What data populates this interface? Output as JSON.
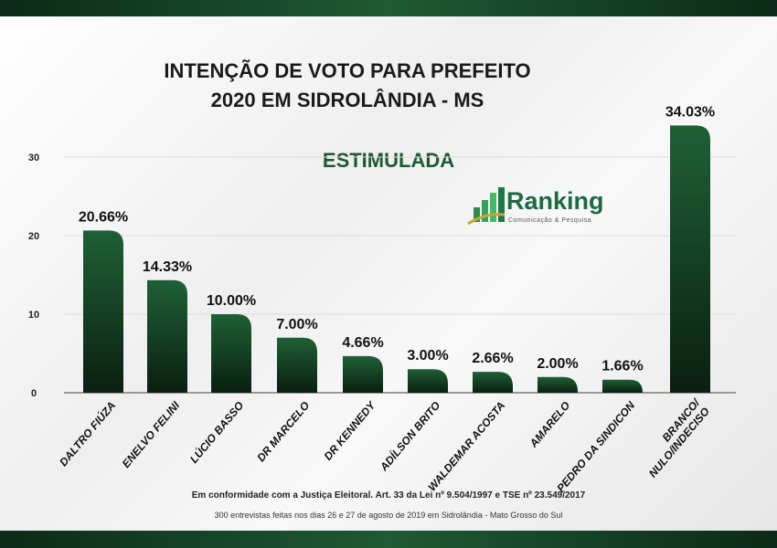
{
  "chart_data": {
    "type": "bar",
    "title": "INTENÇÃO DE VOTO PARA PREFEITO 2020 EM SIDROLÂNDIA - MS",
    "title_lines": [
      "INTENÇÃO DE VOTO PARA PREFEITO",
      "2020 EM SIDROLÂNDIA - MS"
    ],
    "subtitle": "ESTIMULADA",
    "categories": [
      "DALTRO FIÚZA",
      "ENELVO FELINI",
      "LÚCIO BASSO",
      "DR MARCELO",
      "DR KENNEDY",
      "ADÍLSON BRITO",
      "WALDEMAR ACOSTA",
      "AMARELO",
      "PEDRO DA SINDICON",
      "BRANCO/ NULO/INDECISO"
    ],
    "values": [
      20.66,
      14.33,
      10.0,
      7.0,
      4.66,
      3.0,
      2.66,
      2.0,
      1.66,
      34.03
    ],
    "data_labels": [
      "20.66%",
      "14.33%",
      "10.00%",
      "7.00%",
      "4.66%",
      "3.00%",
      "2.66%",
      "2.00%",
      "1.66%",
      "34.03%"
    ],
    "yticks": [
      0,
      10,
      20,
      30
    ],
    "ylim": [
      0,
      36
    ],
    "grid": true,
    "bar_color": "#1d5a30",
    "xlabel": "",
    "ylabel": ""
  },
  "logo": {
    "name": "Ranking",
    "tagline": "Comunicação & Pesquisa"
  },
  "footer": {
    "legal": "Em conformidade com a Justiça Eleitoral. Art. 33 da Lei nº 9.504/1997 e TSE nº 23.549/2017",
    "method": "300 entrevistas feitas nos dias 26 e 27 de agosto de 2019 em Sidrolândia - Mato Grosso do Sul"
  }
}
